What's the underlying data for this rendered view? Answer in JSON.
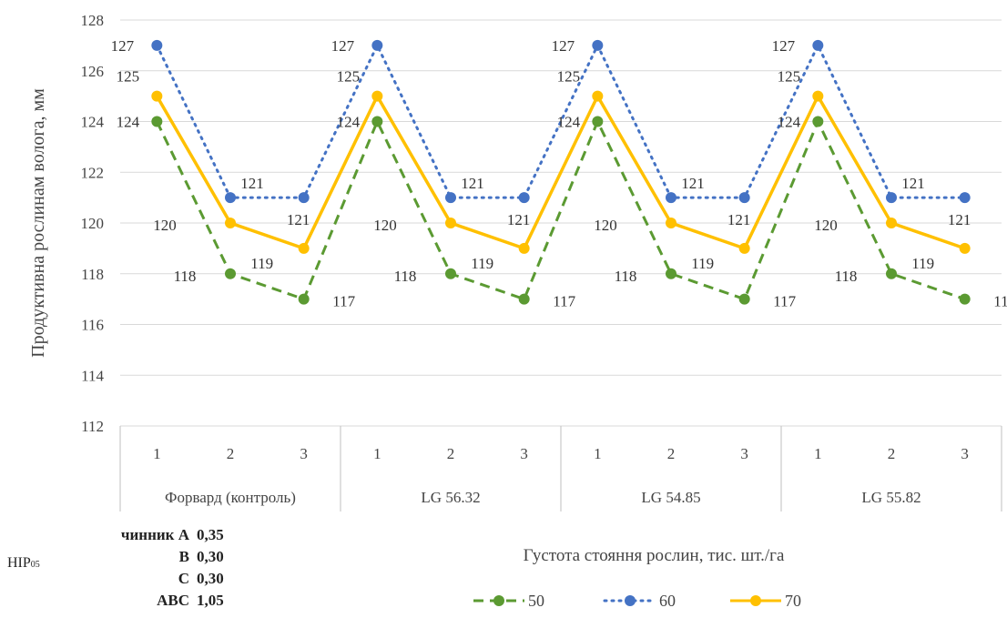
{
  "chart_data": {
    "type": "line",
    "ylabel": "Продуктивна рослинам волога, мм",
    "xlabel": "Густота стояння рослин, тис. шт./га",
    "ylim": [
      112,
      128
    ],
    "yticks": [
      "112",
      "114",
      "116",
      "118",
      "120",
      "122",
      "124",
      "126",
      "128"
    ],
    "x": [
      "1",
      "2",
      "3",
      "1",
      "2",
      "3",
      "1",
      "2",
      "3",
      "1",
      "2",
      "3"
    ],
    "groups": [
      "Форвард (контроль)",
      "LG 56.32",
      "LG 54.85",
      "LG 55.82"
    ],
    "series": [
      {
        "name": "50",
        "color": "#5b9a32",
        "dash": "dashed",
        "values": [
          124,
          118,
          117,
          124,
          118,
          117,
          124,
          118,
          117,
          124,
          118,
          117
        ]
      },
      {
        "name": "60",
        "color": "#4472c4",
        "dash": "dotted",
        "values": [
          127,
          121,
          121,
          127,
          121,
          121,
          127,
          121,
          121,
          127,
          121,
          121
        ]
      },
      {
        "name": "70",
        "color": "#ffc000",
        "dash": "solid",
        "values": [
          125,
          120,
          119,
          125,
          120,
          119,
          125,
          120,
          119,
          125,
          120,
          119
        ]
      }
    ],
    "grid": true,
    "legend_position": "bottom"
  },
  "nir": {
    "label": "НІР",
    "subscript": "05",
    "rows": [
      {
        "key": "чинник А",
        "value": "0,35"
      },
      {
        "key": "В",
        "value": "0,30"
      },
      {
        "key": "С",
        "value": "0,30"
      },
      {
        "key": "АВС",
        "value": "1,05"
      }
    ]
  }
}
